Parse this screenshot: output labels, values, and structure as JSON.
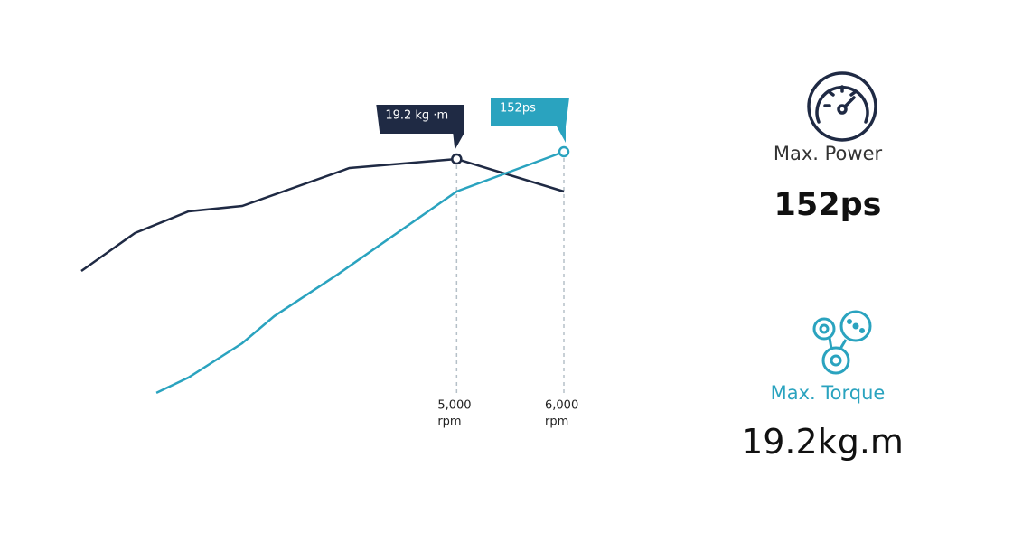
{
  "chart_data": {
    "type": "line",
    "xlim": [
      1500,
      6000
    ],
    "xticks": [
      {
        "value": 5000,
        "label": "5,000"
      },
      {
        "value": 6000,
        "label": "6,000"
      }
    ],
    "x_unit": "rpm",
    "ylim": [
      6,
      23
    ],
    "y2lim": [
      40,
      180
    ],
    "series": [
      {
        "name": "Max. Torque",
        "color": "#1f2a44",
        "x": [
          1500,
          2000,
          2500,
          3000,
          4000,
          5000,
          6000
        ],
        "values": [
          13.0,
          15.1,
          16.3,
          16.6,
          18.7,
          19.2,
          17.4
        ]
      },
      {
        "name": "Max. Power",
        "color": "#2aa3bf",
        "axis": "y2",
        "x": [
          2200,
          2500,
          3000,
          3300,
          3900,
          5000,
          6000
        ],
        "values": [
          42.1,
          49.1,
          64.7,
          77.1,
          96.4,
          133.9,
          152
        ]
      }
    ],
    "annotations": [
      "19.2 kg ·m",
      "152ps"
    ]
  },
  "stats": {
    "power_label": "Max. Power",
    "power_value": "152ps",
    "torque_label": "Max. Torque",
    "torque_value": "19.2kg.m"
  }
}
